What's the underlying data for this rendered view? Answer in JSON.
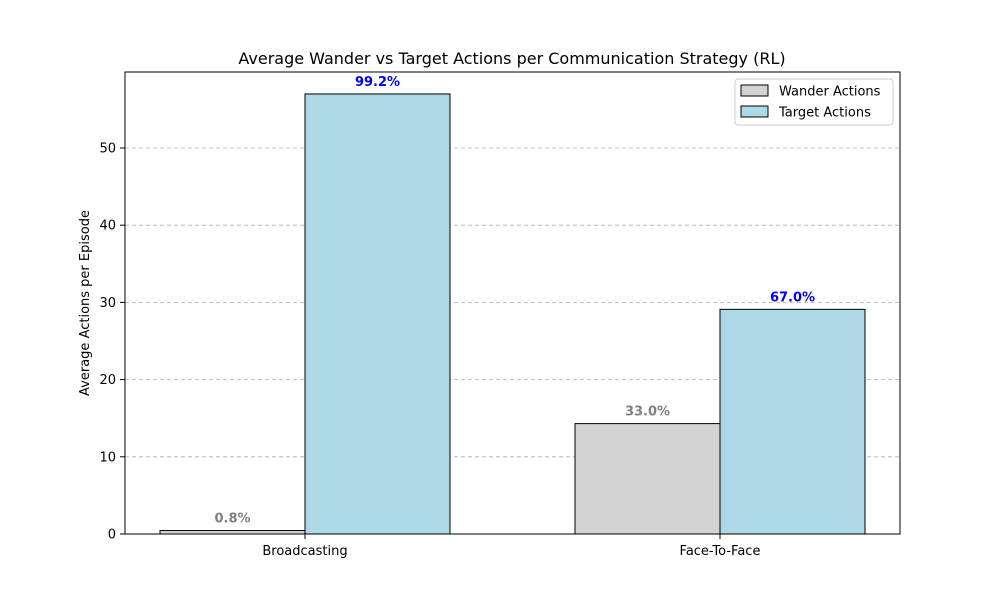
{
  "chart_data": {
    "type": "bar",
    "title": "Average Wander vs Target Actions per Communication Strategy (RL)",
    "xlabel": "",
    "ylabel": "Average Actions per Episode",
    "categories": [
      "Broadcasting",
      "Face-To-Face"
    ],
    "ylim": [
      0,
      60
    ],
    "yticks": [
      0,
      10,
      20,
      30,
      40,
      50
    ],
    "grid": "horizontal dashed",
    "legend_position": "top-right",
    "series": [
      {
        "name": "Wander Actions",
        "values": [
          0.45,
          14.3
        ],
        "labels": [
          "0.8%",
          "33.0%"
        ],
        "color": "#d3d3d3",
        "label_color": "#808080"
      },
      {
        "name": "Target Actions",
        "values": [
          57.0,
          29.1
        ],
        "labels": [
          "99.2%",
          "67.0%"
        ],
        "color": "#add8e6",
        "label_color": "#0000ff"
      }
    ]
  }
}
